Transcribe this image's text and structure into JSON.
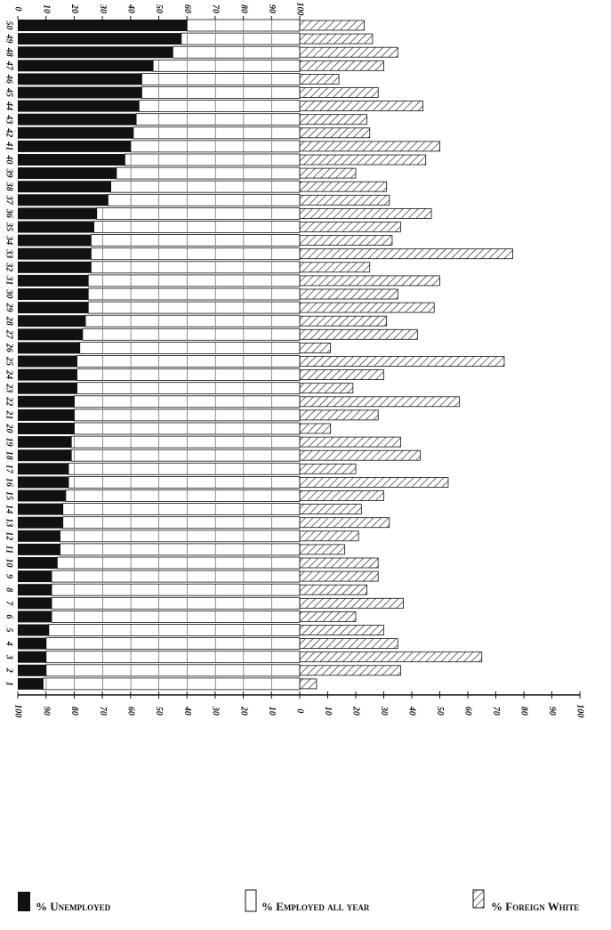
{
  "chart_data": {
    "type": "bar",
    "categories": [
      "1",
      "2",
      "3",
      "4",
      "5",
      "6",
      "7",
      "8",
      "9",
      "10",
      "11",
      "12",
      "13",
      "14",
      "15",
      "16",
      "17",
      "18",
      "19",
      "20",
      "21",
      "22",
      "23",
      "24",
      "25",
      "26",
      "27",
      "28",
      "29",
      "30",
      "31",
      "32",
      "33",
      "34",
      "35",
      "36",
      "37",
      "38",
      "39",
      "40",
      "41",
      "42",
      "43",
      "44",
      "45",
      "46",
      "47",
      "48",
      "49",
      "50"
    ],
    "series": [
      {
        "name": "% Unemployed",
        "color": "#111111",
        "values": [
          9,
          10,
          10,
          10,
          11,
          12,
          12,
          12,
          12,
          14,
          15,
          15,
          16,
          16,
          17,
          18,
          18,
          19,
          19,
          20,
          20,
          20,
          21,
          21,
          21,
          22,
          23,
          24,
          25,
          25,
          25,
          26,
          26,
          26,
          27,
          28,
          32,
          33,
          35,
          38,
          40,
          41,
          42,
          43,
          44,
          44,
          48,
          55,
          58,
          60
        ]
      },
      {
        "name": "% Employed all year",
        "color": "#ffffff",
        "values": [
          91,
          90,
          90,
          90,
          89,
          88,
          88,
          88,
          88,
          86,
          85,
          85,
          84,
          84,
          83,
          82,
          82,
          81,
          81,
          80,
          80,
          80,
          79,
          79,
          79,
          78,
          77,
          76,
          75,
          75,
          75,
          74,
          74,
          74,
          73,
          72,
          68,
          67,
          65,
          62,
          60,
          59,
          58,
          57,
          56,
          56,
          52,
          45,
          42,
          40
        ]
      },
      {
        "name": "% Foreign White",
        "color": "#555555",
        "values": [
          6,
          36,
          65,
          35,
          30,
          20,
          37,
          24,
          28,
          28,
          16,
          21,
          32,
          22,
          30,
          53,
          20,
          43,
          36,
          11,
          28,
          57,
          19,
          30,
          73,
          11,
          42,
          31,
          48,
          35,
          50,
          25,
          76,
          33,
          36,
          47,
          32,
          31,
          20,
          45,
          50,
          25,
          24,
          44,
          28,
          14,
          30,
          35,
          26,
          23
        ]
      }
    ],
    "xlim": [
      0,
      100
    ],
    "xticks": [
      0,
      10,
      20,
      30,
      40,
      50,
      60,
      70,
      80,
      90,
      100
    ],
    "x2lim": [
      100,
      0
    ],
    "x2ticks": [
      100,
      90,
      80,
      70,
      60,
      50,
      40,
      30,
      20,
      10,
      0
    ],
    "x3lim": [
      0,
      100
    ],
    "x3ticks": [
      0,
      10,
      20,
      30,
      40,
      50,
      60,
      70,
      80,
      90,
      100
    ]
  }
}
